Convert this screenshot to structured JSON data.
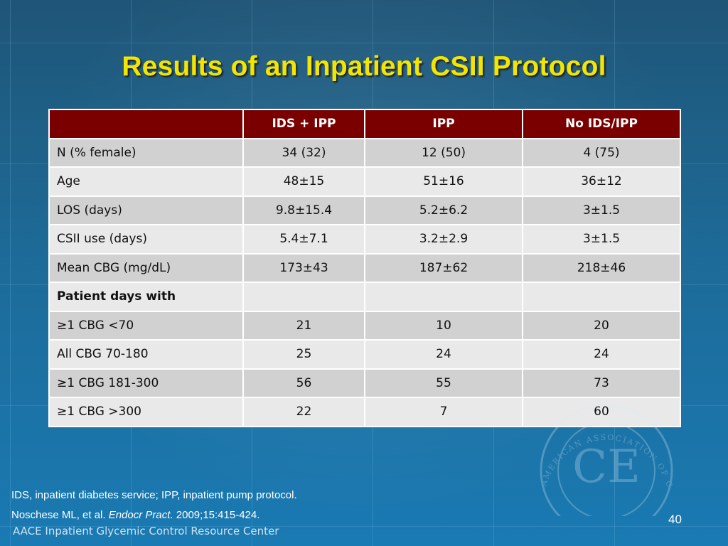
{
  "slide": {
    "title": "Results of an Inpatient CSII Protocol",
    "page_number": "40"
  },
  "table": {
    "headers": [
      "",
      "IDS + IPP",
      "IPP",
      "No IDS/IPP"
    ],
    "rows": [
      {
        "label": "N (% female)",
        "values": [
          "34 (32)",
          "12 (50)",
          "4 (75)"
        ]
      },
      {
        "label": "Age",
        "values": [
          "48±15",
          "51±16",
          "36±12"
        ]
      },
      {
        "label": "LOS (days)",
        "values": [
          "9.8±15.4",
          "5.2±6.2",
          "3±1.5"
        ]
      },
      {
        "label": "CSII use (days)",
        "values": [
          "5.4±7.1",
          "3.2±2.9",
          "3±1.5"
        ]
      },
      {
        "label": "Mean CBG (mg/dL)",
        "values": [
          "173±43",
          "187±62",
          "218±46"
        ]
      },
      {
        "label": "Patient days with",
        "values": [
          "",
          "",
          ""
        ]
      },
      {
        "label": "≥1 CBG <70",
        "values": [
          "21",
          "10",
          "20"
        ]
      },
      {
        "label": "All CBG 70-180",
        "values": [
          "25",
          "24",
          "24"
        ]
      },
      {
        "label": "≥1 CBG 181-300",
        "values": [
          "56",
          "55",
          "73"
        ]
      },
      {
        "label": "≥1 CBG >300",
        "values": [
          "22",
          "7",
          "60"
        ]
      }
    ]
  },
  "footer": {
    "abbreviations": "IDS, inpatient diabetes service; IPP, inpatient pump protocol.",
    "citation_authors": "Noschese ML, et al.",
    "citation_journal": "Endocr Pract.",
    "citation_details": "2009;15:415-424.",
    "organization": "AACE Inpatient Glycemic Control Resource Center"
  },
  "watermark": {
    "text": "CE",
    "ring_text": "AMERICAN ASSOCIATION OF CLINICAL ENDOCRINOLOGISTS"
  },
  "colors": {
    "background_top": "#1f5577",
    "background_bottom": "#1a7ab3",
    "title": "#f2e600",
    "header_fill": "#7a0000",
    "row_dark": "#d1d1d1",
    "row_light": "#e9e9e9"
  }
}
